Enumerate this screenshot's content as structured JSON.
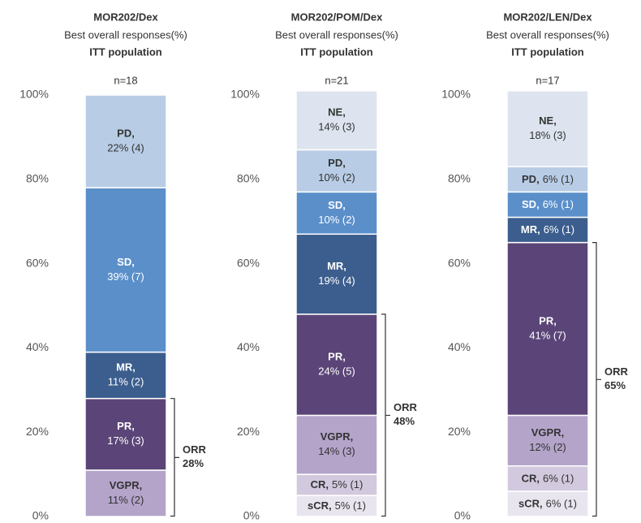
{
  "chart_data": [
    {
      "type": "stacked-bar",
      "title": "MOR202/Dex",
      "subtitle": "Best overall responses(%)",
      "population": "ITT population",
      "n_label": "n=18",
      "ylim": [
        0,
        100
      ],
      "yticks": [
        {
          "value": 0,
          "label": "0%"
        },
        {
          "value": 20,
          "label": "20%"
        },
        {
          "value": 40,
          "label": "40%"
        },
        {
          "value": 60,
          "label": "60%"
        },
        {
          "value": 80,
          "label": "80%"
        },
        {
          "value": 100,
          "label": "100%"
        }
      ],
      "segments": [
        {
          "name": "VGPR,",
          "value": 11,
          "value_label": "11% (2)",
          "color": "#b4a4ca"
        },
        {
          "name": "PR,",
          "value": 17,
          "value_label": "17% (3)",
          "color": "#5b4578"
        },
        {
          "name": "MR,",
          "value": 11,
          "value_label": "11% (2)",
          "color": "#3c5e8e"
        },
        {
          "name": "SD,",
          "value": 39,
          "value_label": "39% (7)",
          "color": "#5a8fca"
        },
        {
          "name": "PD,",
          "value": 22,
          "value_label": "22% (4)",
          "color": "#b8cde5"
        }
      ],
      "orr": {
        "label": "ORR",
        "value": 28,
        "value_label": "28%"
      }
    },
    {
      "type": "stacked-bar",
      "title": "MOR202/POM/Dex",
      "subtitle": "Best overall responses(%)",
      "population": "ITT population",
      "n_label": "n=21",
      "ylim": [
        0,
        100
      ],
      "yticks": [
        {
          "value": 0,
          "label": "0%"
        },
        {
          "value": 20,
          "label": "20%"
        },
        {
          "value": 40,
          "label": "40%"
        },
        {
          "value": 60,
          "label": "60%"
        },
        {
          "value": 80,
          "label": "80%"
        },
        {
          "value": 100,
          "label": "100%"
        }
      ],
      "segments": [
        {
          "name": "sCR,",
          "value": 5,
          "value_label": "5% (1)",
          "color": "#e9e5ef"
        },
        {
          "name": "CR,",
          "value": 5,
          "value_label": "5% (1)",
          "color": "#d2c9de"
        },
        {
          "name": "VGPR,",
          "value": 14,
          "value_label": "14% (3)",
          "color": "#b4a4ca"
        },
        {
          "name": "PR,",
          "value": 24,
          "value_label": "24% (5)",
          "color": "#5b4578"
        },
        {
          "name": "MR,",
          "value": 19,
          "value_label": "19% (4)",
          "color": "#3c5e8e"
        },
        {
          "name": "SD,",
          "value": 10,
          "value_label": "10% (2)",
          "color": "#5a8fca"
        },
        {
          "name": "PD,",
          "value": 10,
          "value_label": "10% (2)",
          "color": "#b8cde5"
        },
        {
          "name": "NE,",
          "value": 14,
          "value_label": "14% (3)",
          "color": "#dde4ef"
        }
      ],
      "orr": {
        "label": "ORR",
        "value": 48,
        "value_label": "48%"
      }
    },
    {
      "type": "stacked-bar",
      "title": "MOR202/LEN/Dex",
      "subtitle": "Best overall responses(%)",
      "population": "ITT population",
      "n_label": "n=17",
      "ylim": [
        0,
        100
      ],
      "yticks": [
        {
          "value": 0,
          "label": "0%"
        },
        {
          "value": 20,
          "label": "20%"
        },
        {
          "value": 40,
          "label": "40%"
        },
        {
          "value": 60,
          "label": "60%"
        },
        {
          "value": 80,
          "label": "80%"
        },
        {
          "value": 100,
          "label": "100%"
        }
      ],
      "segments": [
        {
          "name": "sCR,",
          "value": 6,
          "value_label": "6% (1)",
          "color": "#e9e5ef"
        },
        {
          "name": "CR,",
          "value": 6,
          "value_label": "6% (1)",
          "color": "#d2c9de"
        },
        {
          "name": "VGPR,",
          "value": 12,
          "value_label": "12% (2)",
          "color": "#b4a4ca"
        },
        {
          "name": "PR,",
          "value": 41,
          "value_label": "41% (7)",
          "color": "#5b4578"
        },
        {
          "name": "MR,",
          "value": 6,
          "value_label": "6% (1)",
          "color": "#3c5e8e"
        },
        {
          "name": "SD,",
          "value": 6,
          "value_label": "6% (1)",
          "color": "#5a8fca"
        },
        {
          "name": "PD,",
          "value": 6,
          "value_label": "6% (1)",
          "color": "#b8cde5"
        },
        {
          "name": "NE,",
          "value": 18,
          "value_label": "18% (3)",
          "color": "#dde4ef"
        }
      ],
      "orr": {
        "label": "ORR",
        "value": 65,
        "value_label": "65%"
      }
    }
  ]
}
